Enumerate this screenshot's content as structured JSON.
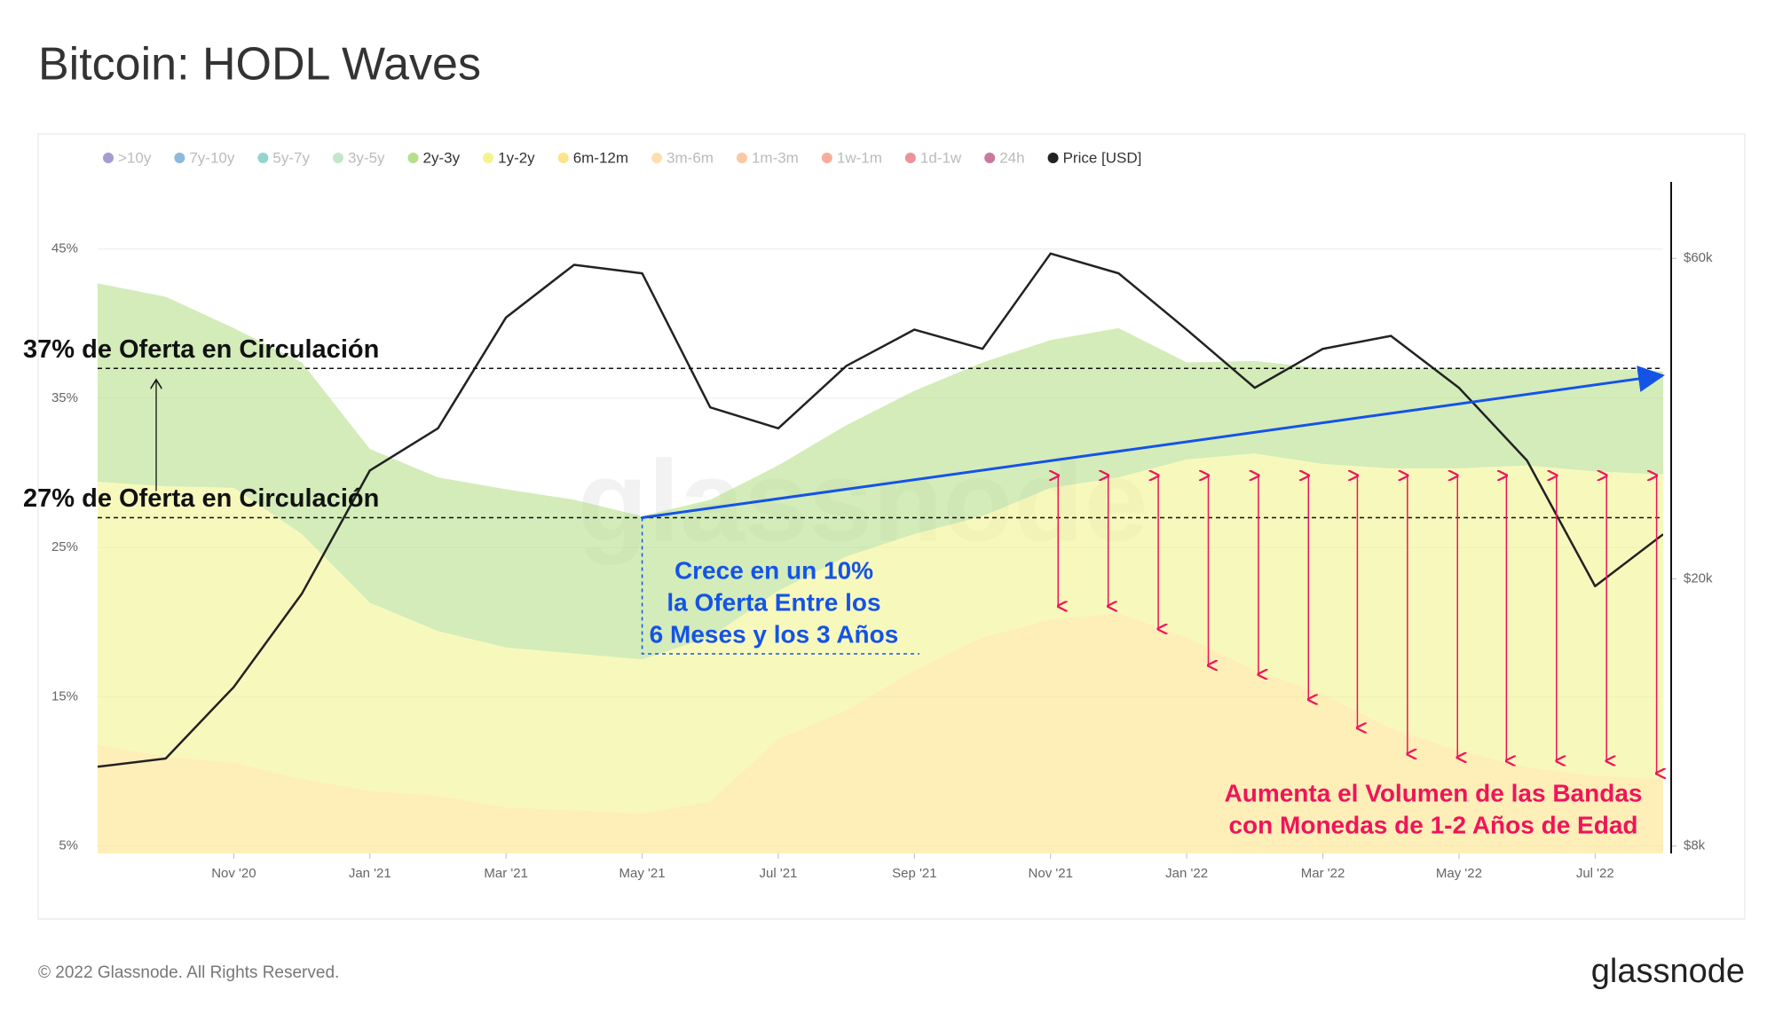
{
  "title": "Bitcoin: HODL Waves",
  "footer": "© 2022 Glassnode. All Rights Reserved.",
  "logo": "glassnode",
  "chart_data": {
    "type": "area",
    "watermark": "glassnode",
    "x": [
      "2020-09",
      "2020-10",
      "2020-11",
      "2020-12",
      "2021-01",
      "2021-02",
      "2021-03",
      "2021-04",
      "2021-05",
      "2021-06",
      "2021-07",
      "2021-08",
      "2021-09",
      "2021-10",
      "2021-11",
      "2021-12",
      "2022-01",
      "2022-02",
      "2022-03",
      "2022-04",
      "2022-05",
      "2022-06",
      "2022-07",
      "2022-08"
    ],
    "xlim": [
      "2020-09",
      "2022-08"
    ],
    "xticks": [
      {
        "value": "2020-11",
        "label": "Nov '20"
      },
      {
        "value": "2021-01",
        "label": "Jan '21"
      },
      {
        "value": "2021-03",
        "label": "Mar '21"
      },
      {
        "value": "2021-05",
        "label": "May '21"
      },
      {
        "value": "2021-07",
        "label": "Jul '21"
      },
      {
        "value": "2021-09",
        "label": "Sep '21"
      },
      {
        "value": "2021-11",
        "label": "Nov '21"
      },
      {
        "value": "2022-01",
        "label": "Jan '22"
      },
      {
        "value": "2022-03",
        "label": "Mar '22"
      },
      {
        "value": "2022-05",
        "label": "May '22"
      },
      {
        "value": "2022-07",
        "label": "Jul '22"
      }
    ],
    "ylim": [
      4.5,
      49.5
    ],
    "yticks": [
      {
        "value": 5,
        "label": "5%"
      },
      {
        "value": 15,
        "label": "15%"
      },
      {
        "value": 25,
        "label": "25%"
      },
      {
        "value": 35,
        "label": "35%"
      },
      {
        "value": 45,
        "label": "45%"
      }
    ],
    "y2lim": [
      7800,
      78000
    ],
    "y2log": true,
    "y2ticks": [
      {
        "value": 8000,
        "label": "$8k"
      },
      {
        "value": 20000,
        "label": "$20k"
      },
      {
        "value": 60000,
        "label": "$60k"
      }
    ],
    "grid": true,
    "series": [
      {
        "name": "2y-3y",
        "color": "#b5df8a",
        "values": [
          13.3,
          12.7,
          10.7,
          11.5,
          10.3,
          10.3,
          10.6,
          10.3,
          9.6,
          9.2,
          8.4,
          8.8,
          9.6,
          10.3,
          9.9,
          10.0,
          6.5,
          6.2,
          6.4,
          6.7,
          6.7,
          6.5,
          6.9,
          6.9
        ]
      },
      {
        "name": "1y-2y",
        "color": "#f2f58f",
        "values": [
          17.6,
          18.1,
          18.4,
          16.4,
          12.6,
          11.0,
          10.7,
          10.5,
          10.3,
          11.0,
          9.9,
          10.3,
          9.1,
          8.1,
          8.8,
          9.1,
          11.9,
          14.5,
          15.4,
          17.4,
          18.9,
          20.2,
          20.4,
          20.4
        ]
      },
      {
        "name": "6m-12m",
        "color": "#fde48a",
        "values": [
          11.8,
          11.0,
          10.6,
          9.5,
          8.7,
          8.4,
          7.6,
          7.4,
          7.2,
          8.0,
          12.2,
          14.1,
          16.8,
          19.0,
          20.2,
          20.6,
          19.0,
          16.8,
          15.2,
          12.9,
          11.4,
          10.3,
          9.7,
          9.5
        ]
      },
      {
        "name": "Price [USD]",
        "color": "#222222",
        "axis": "y2",
        "values": [
          10500,
          10800,
          13800,
          19000,
          29000,
          33500,
          49000,
          58700,
          57000,
          36000,
          33500,
          41500,
          47000,
          44000,
          61000,
          57000,
          47000,
          38500,
          44000,
          46000,
          38500,
          30000,
          19500,
          23300
        ]
      }
    ],
    "hidden_series": [
      {
        "name": ">10y",
        "color": "#5a4aae"
      },
      {
        "name": "7y-10y",
        "color": "#2f7fc1"
      },
      {
        "name": "5y-7y",
        "color": "#3bb3a0"
      },
      {
        "name": "3y-5y",
        "color": "#8fd49e"
      },
      {
        "name": "3m-6m",
        "color": "#fcc46e"
      },
      {
        "name": "1m-3m",
        "color": "#f99a58"
      },
      {
        "name": "1w-1m",
        "color": "#f06a48"
      },
      {
        "name": "1d-1w",
        "color": "#d83a4a"
      },
      {
        "name": "24h",
        "color": "#9c0a4e"
      }
    ],
    "annotations": [
      {
        "text": "37% de Oferta en Circulación",
        "value": 37
      },
      {
        "text": "27% de Oferta en Circulación",
        "value": 27
      }
    ],
    "trend": {
      "text": [
        "Crece en un 10%",
        "la Oferta Entre los",
        "6 Meses y los 3 Años"
      ],
      "color": "#1553e6",
      "start": {
        "x": "2021-05",
        "y": 27
      },
      "end": {
        "x": "2022-08",
        "y": 36.5
      }
    },
    "callout": {
      "text": [
        "Aumenta el Volumen de las Bandas",
        "con Monedas de 1-2 Años de Edad"
      ],
      "color": "#f0145a"
    }
  }
}
